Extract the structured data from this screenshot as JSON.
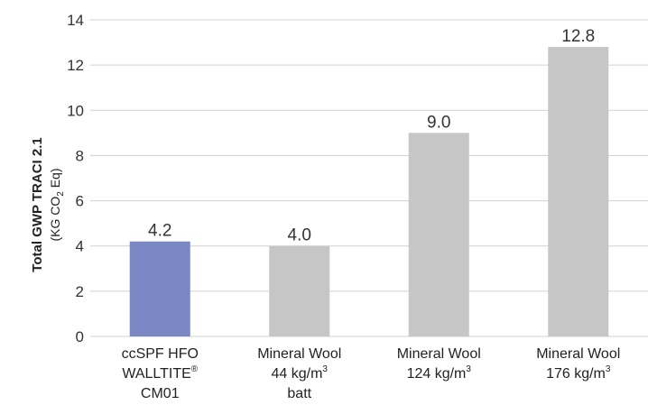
{
  "chart_data": {
    "type": "bar",
    "title": "",
    "ylabel": "Total GWP TRACI 2.1",
    "ylabel_unit": {
      "before": "(KG CO",
      "sub": "2",
      "after": " Eq)"
    },
    "ylim": [
      0,
      14
    ],
    "yticks": [
      0,
      2,
      4,
      6,
      8,
      10,
      12,
      14
    ],
    "grid": true,
    "categories": [
      {
        "lines": [
          {
            "text": "ccSPF HFO"
          },
          {
            "text": "WALLTITE",
            "sup": "®"
          },
          {
            "text": "CM01"
          }
        ]
      },
      {
        "lines": [
          {
            "text": "Mineral Wool"
          },
          {
            "text": "44 kg/m",
            "sup": "3"
          },
          {
            "text": "batt"
          }
        ]
      },
      {
        "lines": [
          {
            "text": "Mineral Wool"
          },
          {
            "text": "124 kg/m",
            "sup": "3"
          }
        ]
      },
      {
        "lines": [
          {
            "text": "Mineral Wool"
          },
          {
            "text": "176 kg/m",
            "sup": "3"
          }
        ]
      }
    ],
    "values": [
      4.2,
      4.0,
      9.0,
      12.8
    ],
    "value_labels": [
      "4.2",
      "4.0",
      "9.0",
      "12.8"
    ],
    "bar_colors": [
      "#7b86c4",
      "#c6c6c6",
      "#c6c6c6",
      "#c6c6c6"
    ],
    "gridline_color": "#d0d0d0"
  }
}
